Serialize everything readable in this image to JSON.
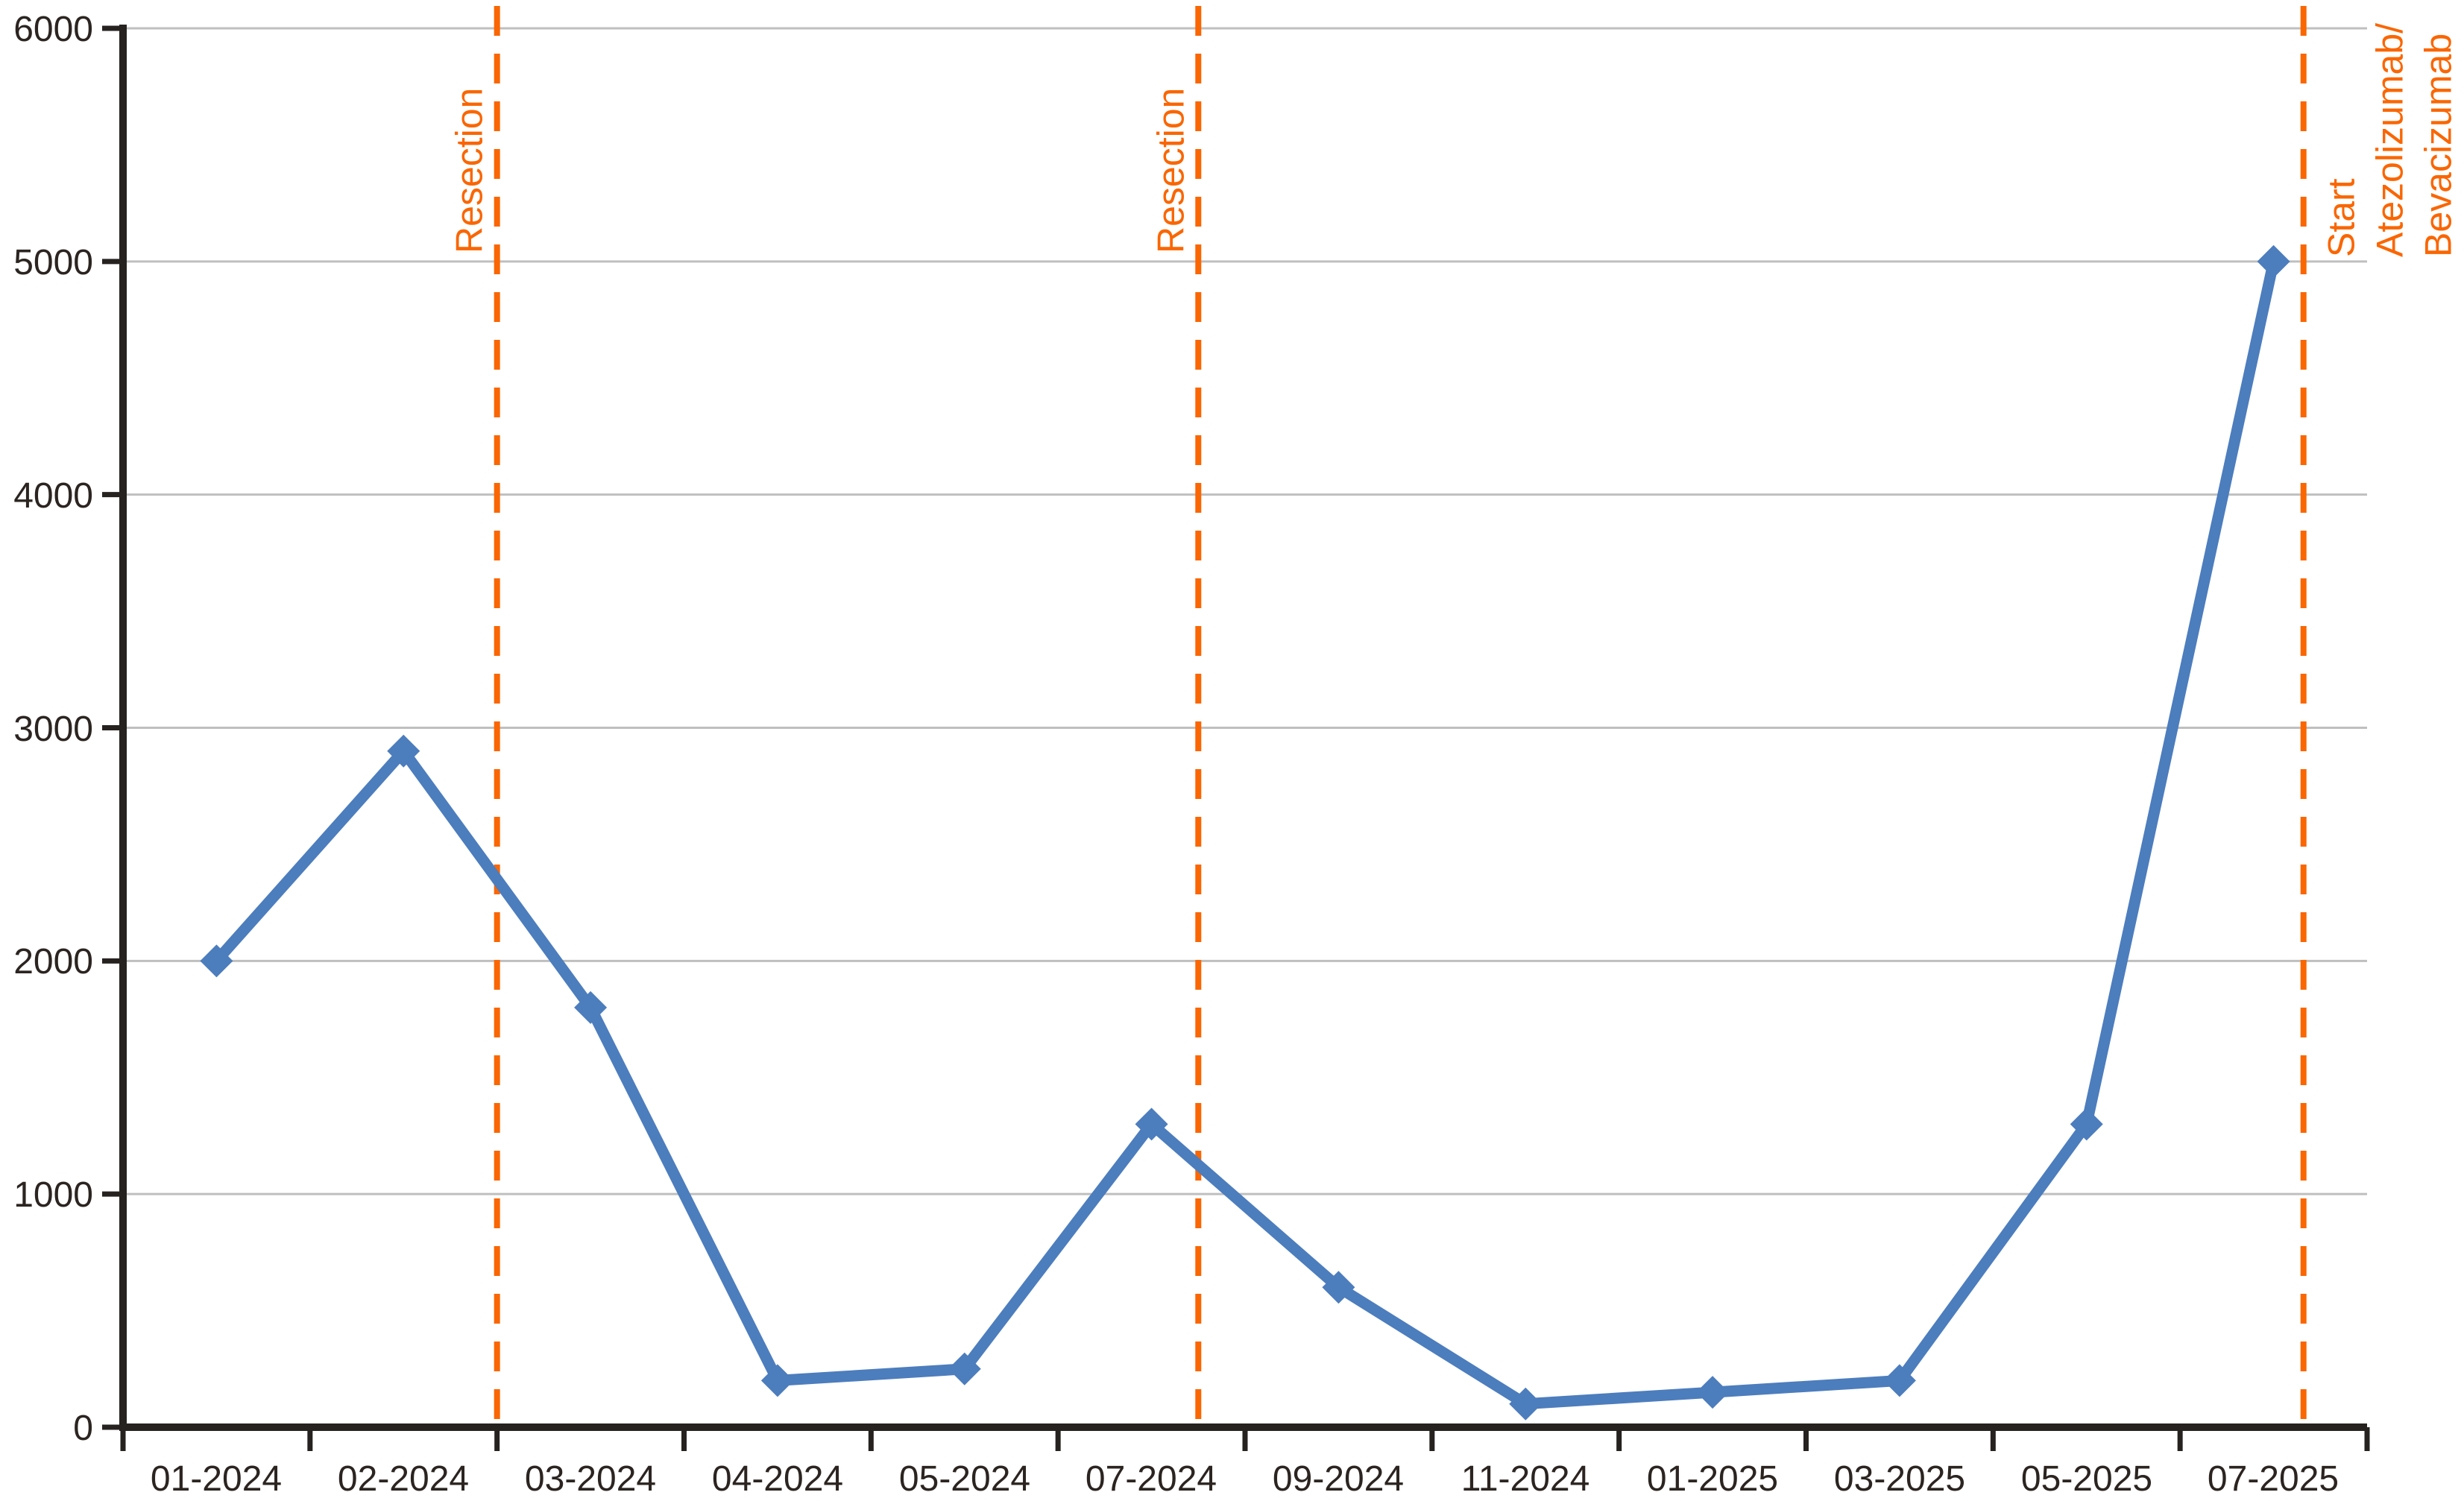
{
  "chart_data": {
    "type": "line",
    "title": "",
    "categories": [
      "01-2024",
      "02-2024",
      "03-2024",
      "04-2024",
      "05-2024",
      "07-2024",
      "09-2024",
      "11-2024",
      "01-2025",
      "03-2025",
      "05-2025",
      "07-2025"
    ],
    "series": [
      {
        "name": "",
        "values": [
          2000,
          2900,
          1800,
          200,
          250,
          1300,
          600,
          100,
          150,
          200,
          1300,
          5000
        ]
      }
    ],
    "ylim": [
      0,
      6000
    ],
    "yticks": [
      0,
      1000,
      2000,
      3000,
      4000,
      5000,
      6000
    ],
    "grid": "horizontal-only",
    "legend_position": "none",
    "marker": "diamond",
    "colors": {
      "line": "#4C7DBD",
      "marker": "#4C7DBD",
      "gridline": "#BFBFBF",
      "axis": "#262220",
      "tick_label": "#2B2420",
      "annotation": "#FA6602"
    },
    "annotations": [
      {
        "id": "resection-1",
        "label_lines": [
          "Resection"
        ],
        "x_index": 1.5,
        "label_side": "left"
      },
      {
        "id": "resection-2",
        "label_lines": [
          "Resection"
        ],
        "x_index": 5.25,
        "label_side": "left"
      },
      {
        "id": "start-atezolizumab-bevacizumab",
        "label_lines": [
          "Start",
          "Atezolizumab/",
          "Bevacizumab"
        ],
        "x_index": 11.16,
        "label_side": "right"
      }
    ]
  }
}
